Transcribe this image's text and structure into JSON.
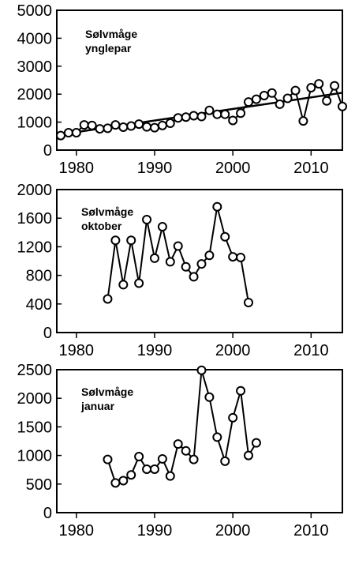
{
  "chart_data": [
    {
      "type": "line",
      "title_lines": [
        "Sølvmåge",
        "ynglepar"
      ],
      "xlabel": "",
      "ylabel": "",
      "xlim": [
        1977.5,
        2014
      ],
      "ylim": [
        0,
        5000
      ],
      "xticks": [
        1980,
        1990,
        2000,
        2010
      ],
      "yticks": [
        0,
        1000,
        2000,
        3000,
        4000,
        5000
      ],
      "grid": false,
      "series": [
        {
          "x": [
            1978,
            1979,
            1980,
            1981,
            1982,
            1983,
            1984,
            1985,
            1986,
            1987,
            1988,
            1989,
            1990,
            1991,
            1992,
            1993,
            1994,
            1995,
            1996,
            1997,
            1998,
            1999,
            2000,
            2001,
            2002,
            2003,
            2004,
            2005,
            2006,
            2007,
            2008,
            2009,
            2010,
            2011,
            2012,
            2013,
            2014
          ],
          "y": [
            520,
            620,
            620,
            900,
            880,
            760,
            780,
            900,
            820,
            860,
            930,
            830,
            800,
            880,
            960,
            1150,
            1180,
            1230,
            1200,
            1420,
            1280,
            1280,
            1060,
            1320,
            1720,
            1820,
            1950,
            2040,
            1640,
            1850,
            2130,
            1040,
            2230,
            2370,
            1760,
            2300,
            1560
          ]
        }
      ],
      "trendline": {
        "x": [
          1978,
          2014
        ],
        "y": [
          560,
          2050
        ]
      }
    },
    {
      "type": "line",
      "title_lines": [
        "Sølvmåge",
        "oktober"
      ],
      "xlabel": "",
      "ylabel": "",
      "xlim": [
        1977.5,
        2014
      ],
      "ylim": [
        0,
        2000
      ],
      "xticks": [
        1980,
        1990,
        2000,
        2010
      ],
      "yticks": [
        0,
        400,
        800,
        1200,
        1600,
        2000
      ],
      "grid": false,
      "series": [
        {
          "x": [
            1984,
            1985,
            1986,
            1987,
            1988,
            1989,
            1990,
            1991,
            1992,
            1993,
            1994,
            1995,
            1996,
            1997,
            1998,
            1999,
            2000,
            2001,
            2002
          ],
          "y": [
            470,
            1290,
            670,
            1290,
            690,
            1580,
            1040,
            1480,
            990,
            1210,
            920,
            780,
            960,
            1080,
            1760,
            1340,
            1060,
            1050,
            420
          ]
        }
      ]
    },
    {
      "type": "line",
      "title_lines": [
        "Sølvmåge",
        "januar"
      ],
      "xlabel": "",
      "ylabel": "",
      "xlim": [
        1977.5,
        2014
      ],
      "ylim": [
        0,
        2500
      ],
      "xticks": [
        1980,
        1990,
        2000,
        2010
      ],
      "yticks": [
        0,
        500,
        1000,
        1500,
        2000,
        2500
      ],
      "grid": false,
      "series": [
        {
          "x": [
            1984,
            1985,
            1986,
            1987,
            1988,
            1989,
            1990,
            1991,
            1992,
            1993,
            1994,
            1995,
            1996,
            1997,
            1998,
            1999,
            2000,
            2001,
            2002,
            2003
          ],
          "y": [
            930,
            520,
            560,
            660,
            980,
            760,
            760,
            940,
            640,
            1200,
            1080,
            930,
            2490,
            2020,
            1320,
            900,
            1660,
            2130,
            1000,
            1220
          ]
        }
      ]
    }
  ]
}
